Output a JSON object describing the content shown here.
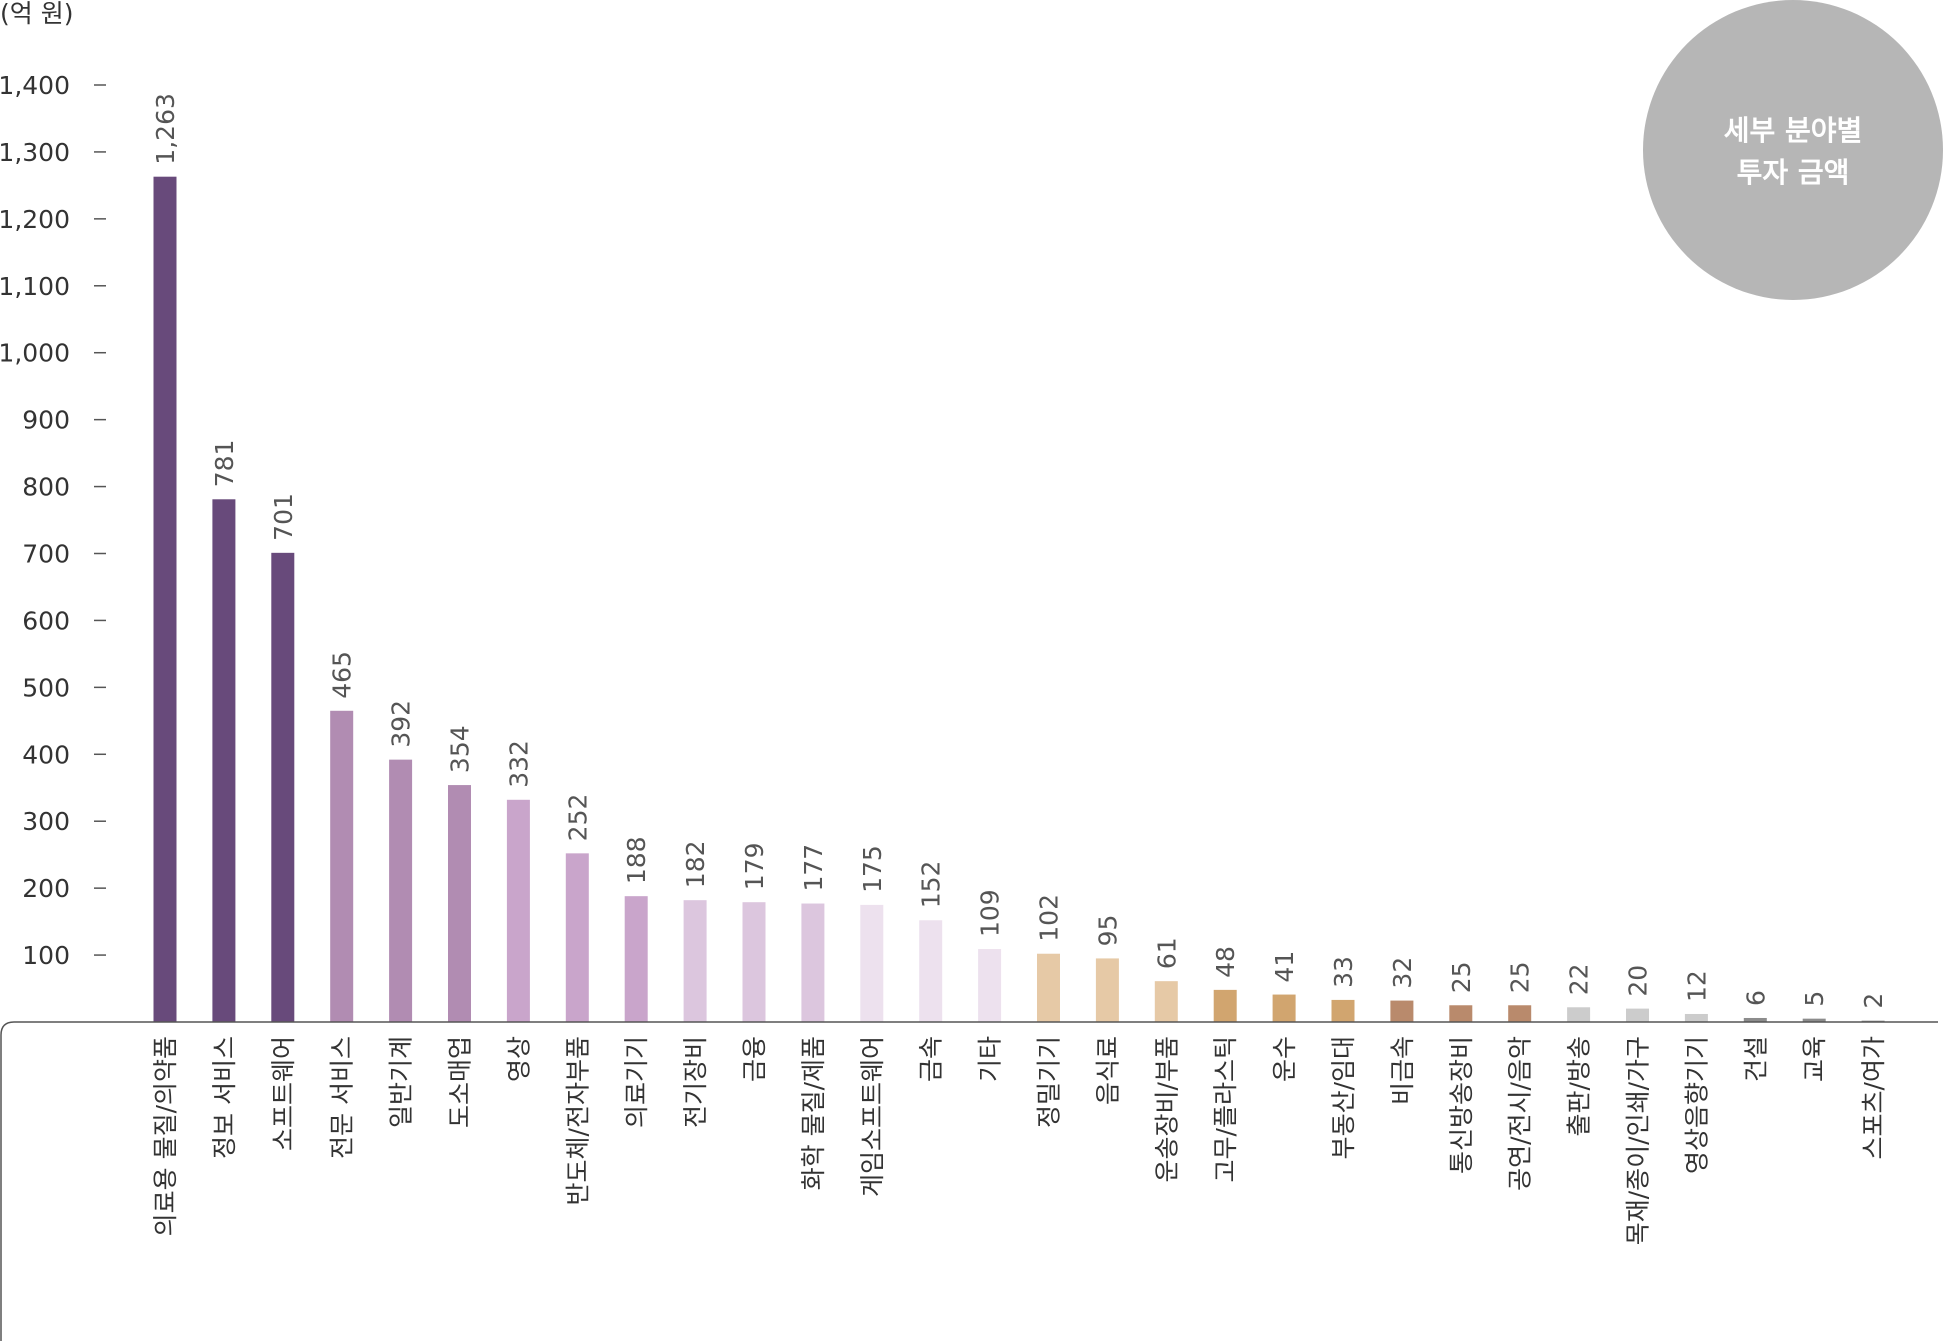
{
  "chart_data": {
    "type": "bar",
    "unit_label": "(억 원)",
    "badge_lines": [
      "세부 분야별",
      "투자 금액"
    ],
    "ylim": [
      0,
      1400
    ],
    "yticks": [
      "100",
      "200",
      "300",
      "400",
      "500",
      "600",
      "700",
      "800",
      "900",
      "1,000",
      "1,100",
      "1,200",
      "1,300",
      "1,400"
    ],
    "grid": false,
    "bars": [
      {
        "category": "의료용 물질/의약품",
        "value": 1263,
        "label": "1,263",
        "color": "#684a7b"
      },
      {
        "category": "정보 서비스",
        "value": 781,
        "label": "781",
        "color": "#684a7b"
      },
      {
        "category": "소프트웨어",
        "value": 701,
        "label": "701",
        "color": "#684a7b"
      },
      {
        "category": "전문 서비스",
        "value": 465,
        "label": "465",
        "color": "#b18cb2"
      },
      {
        "category": "일반기계",
        "value": 392,
        "label": "392",
        "color": "#b18cb2"
      },
      {
        "category": "도소매업",
        "value": 354,
        "label": "354",
        "color": "#b18cb2"
      },
      {
        "category": "영상",
        "value": 332,
        "label": "332",
        "color": "#c9a5cb"
      },
      {
        "category": "반도체/전자부품",
        "value": 252,
        "label": "252",
        "color": "#c9a5cb"
      },
      {
        "category": "의료기기",
        "value": 188,
        "label": "188",
        "color": "#c9a5cb"
      },
      {
        "category": "전기장비",
        "value": 182,
        "label": "182",
        "color": "#dcc6de"
      },
      {
        "category": "금융",
        "value": 179,
        "label": "179",
        "color": "#dcc6de"
      },
      {
        "category": "화학 물질/제품",
        "value": 177,
        "label": "177",
        "color": "#dcc6de"
      },
      {
        "category": "게임소프트웨어",
        "value": 175,
        "label": "175",
        "color": "#ede1ee"
      },
      {
        "category": "금속",
        "value": 152,
        "label": "152",
        "color": "#ede1ee"
      },
      {
        "category": "기타",
        "value": 109,
        "label": "109",
        "color": "#ede1ee"
      },
      {
        "category": "정밀기기",
        "value": 102,
        "label": "102",
        "color": "#e6c9a6"
      },
      {
        "category": "음식료",
        "value": 95,
        "label": "95",
        "color": "#e6c9a6"
      },
      {
        "category": "운송장비/부품",
        "value": 61,
        "label": "61",
        "color": "#e6c9a6"
      },
      {
        "category": "고무/플라스틱",
        "value": 48,
        "label": "48",
        "color": "#d1a56f"
      },
      {
        "category": "운수",
        "value": 41,
        "label": "41",
        "color": "#d1a56f"
      },
      {
        "category": "부동산/임대",
        "value": 33,
        "label": "33",
        "color": "#d1a56f"
      },
      {
        "category": "비금속",
        "value": 32,
        "label": "32",
        "color": "#b98a6c"
      },
      {
        "category": "통신방송장비",
        "value": 25,
        "label": "25",
        "color": "#b98a6c"
      },
      {
        "category": "공연/전시/음악",
        "value": 25,
        "label": "25",
        "color": "#b98a6c"
      },
      {
        "category": "출판/방송",
        "value": 22,
        "label": "22",
        "color": "#cccccc"
      },
      {
        "category": "목재/종이/인쇄/가구",
        "value": 20,
        "label": "20",
        "color": "#cccccc"
      },
      {
        "category": "영상음향기기",
        "value": 12,
        "label": "12",
        "color": "#cccccc"
      },
      {
        "category": "건설",
        "value": 6,
        "label": "6",
        "color": "#8c8c8c"
      },
      {
        "category": "교육",
        "value": 5,
        "label": "5",
        "color": "#8c8c8c"
      },
      {
        "category": "스포츠/여가",
        "value": 2,
        "label": "2",
        "color": "#8c8c8c"
      }
    ],
    "colors": {
      "axis": "#555555",
      "badge": "#b6b6b6"
    }
  }
}
